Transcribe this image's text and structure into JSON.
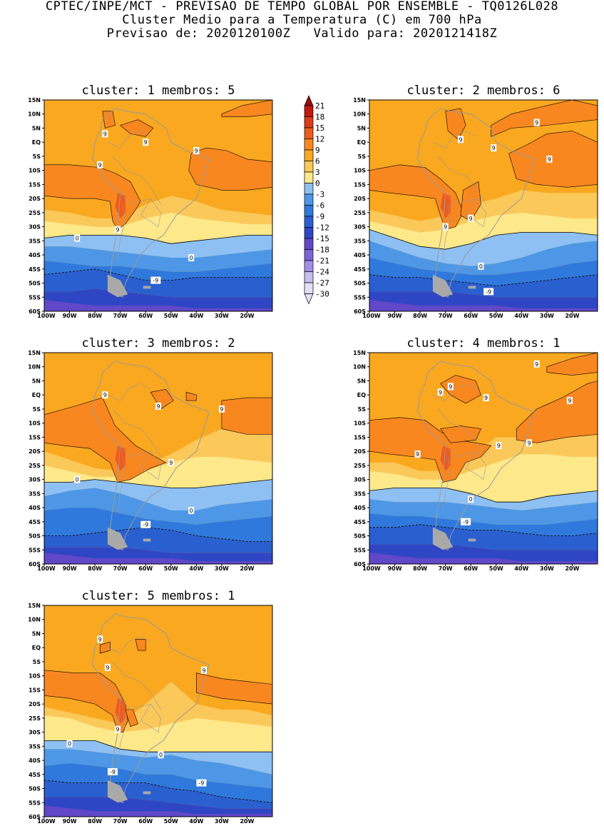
{
  "header": {
    "line1": "CPTEC/INPE/MCT - PREVISAO DE TEMPO GLOBAL POR ENSEMBLE - TQ0126L028",
    "line2": "Cluster Medio para a Temperatura (C) em 700 hPa",
    "line3": "Previsao de: 2020120100Z   Valido para: 2020121418Z"
  },
  "colors": {
    "levels": [
      "#e3e0f6",
      "#c6bdf0",
      "#9f8fe6",
      "#7b64d9",
      "#6148c8",
      "#2f46c4",
      "#2a5fd0",
      "#3079dc",
      "#4d97e6",
      "#8ec0f3",
      "#fde88a",
      "#fbc85a",
      "#f9a820",
      "#f98720",
      "#ed5c1e",
      "#dc3c18",
      "#c21810",
      "#9a0c0c"
    ],
    "coast": "#9a9a9a",
    "land_mass": "#a9a9a9"
  },
  "chart_data": {
    "type": "heatmap",
    "field": "Temperatura (C) em 700 hPa",
    "xlim": [
      -100,
      -10
    ],
    "ylim": [
      -60,
      15
    ],
    "x_ticks": [
      "100W",
      "90W",
      "80W",
      "70W",
      "60W",
      "50W",
      "40W",
      "30W",
      "20W"
    ],
    "y_ticks": [
      "15N",
      "10N",
      "5N",
      "EQ",
      "5S",
      "10S",
      "15S",
      "20S",
      "25S",
      "30S",
      "35S",
      "40S",
      "45S",
      "50S",
      "55S",
      "60S"
    ],
    "colorbar": {
      "labels": [
        "21",
        "18",
        "15",
        "12",
        "9",
        "6",
        "3",
        "0",
        "-3",
        "-6",
        "-9",
        "-12",
        "-15",
        "-18",
        "-21",
        "-24",
        "-27",
        "-30"
      ]
    },
    "panels": [
      {
        "title": "cluster: 1   membros: 5",
        "contour_labels": [
          {
            "text": "9",
            "lon": -76,
            "lat": 3
          },
          {
            "text": "9",
            "lon": -60,
            "lat": 0
          },
          {
            "text": "9",
            "lon": -78,
            "lat": -8
          },
          {
            "text": "9",
            "lon": -40,
            "lat": -3
          },
          {
            "text": "9",
            "lon": -71,
            "lat": -31
          },
          {
            "text": "0",
            "lon": -87,
            "lat": -34
          },
          {
            "text": "0",
            "lon": -42,
            "lat": -41
          },
          {
            "text": "-9",
            "lon": -56,
            "lat": -49
          }
        ]
      },
      {
        "title": "cluster: 2   membros: 6",
        "contour_labels": [
          {
            "text": "9",
            "lon": -34,
            "lat": 7
          },
          {
            "text": "9",
            "lon": -64,
            "lat": 1
          },
          {
            "text": "9",
            "lon": -51,
            "lat": -2
          },
          {
            "text": "9",
            "lon": -29,
            "lat": -6
          },
          {
            "text": "9",
            "lon": -70,
            "lat": -30
          },
          {
            "text": "9",
            "lon": -60,
            "lat": -27
          },
          {
            "text": "0",
            "lon": -56,
            "lat": -44
          },
          {
            "text": "-9",
            "lon": -53,
            "lat": -53
          }
        ]
      },
      {
        "title": "cluster: 3   membros: 2",
        "contour_labels": [
          {
            "text": "9",
            "lon": -76,
            "lat": 0
          },
          {
            "text": "9",
            "lon": -55,
            "lat": -4
          },
          {
            "text": "9",
            "lon": -30,
            "lat": -5
          },
          {
            "text": "9",
            "lon": -50,
            "lat": -24
          },
          {
            "text": "0",
            "lon": -87,
            "lat": -30
          },
          {
            "text": "0",
            "lon": -42,
            "lat": -41
          },
          {
            "text": "-9",
            "lon": -60,
            "lat": -46
          }
        ]
      },
      {
        "title": "cluster: 4   membros: 1",
        "contour_labels": [
          {
            "text": "9",
            "lon": -34,
            "lat": 11
          },
          {
            "text": "9",
            "lon": -68,
            "lat": 3
          },
          {
            "text": "9",
            "lon": -72,
            "lat": 1
          },
          {
            "text": "9",
            "lon": -54,
            "lat": -1
          },
          {
            "text": "9",
            "lon": -21,
            "lat": -2
          },
          {
            "text": "9",
            "lon": -49,
            "lat": -18
          },
          {
            "text": "9",
            "lon": -37,
            "lat": -17
          },
          {
            "text": "9",
            "lon": -81,
            "lat": -21
          },
          {
            "text": "0",
            "lon": -60,
            "lat": -37
          },
          {
            "text": "-9",
            "lon": -62,
            "lat": -45
          }
        ]
      },
      {
        "title": "cluster: 5   membros: 1",
        "contour_labels": [
          {
            "text": "9",
            "lon": -78,
            "lat": 3
          },
          {
            "text": "9",
            "lon": -75,
            "lat": -7
          },
          {
            "text": "9",
            "lon": -37,
            "lat": -8
          },
          {
            "text": "9",
            "lon": -71,
            "lat": -29
          },
          {
            "text": "0",
            "lon": -90,
            "lat": -34
          },
          {
            "text": "0",
            "lon": -54,
            "lat": -38
          },
          {
            "text": "-9",
            "lon": -73,
            "lat": -44
          },
          {
            "text": "-9",
            "lon": -38,
            "lat": -48
          }
        ]
      }
    ]
  }
}
